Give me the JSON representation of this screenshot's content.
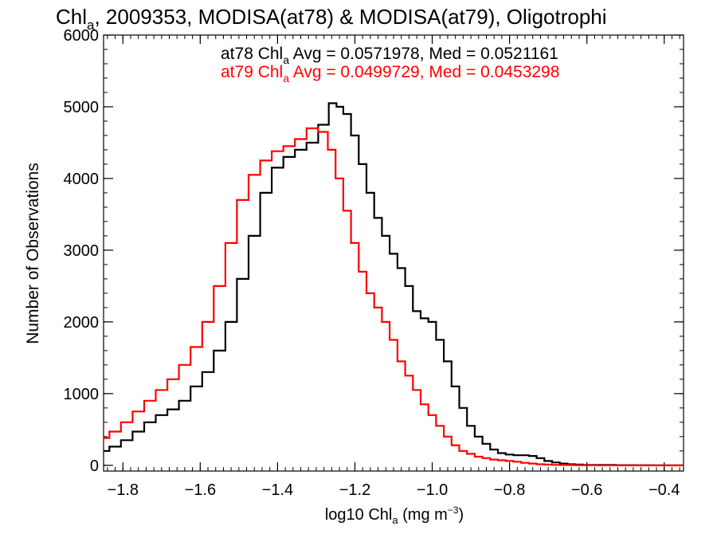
{
  "chart_data": {
    "type": "line",
    "title": {
      "base": "Chl",
      "sub": "a",
      "rest": ", 2009353, MODISA(at78) & MODISA(at79), Oligotrophi"
    },
    "xlabel": {
      "base": "log10 Chl",
      "sub": "a",
      "units": " (mg m",
      "sup": "−3",
      "close": ")"
    },
    "ylabel": "Number of Observations",
    "xlim": [
      -1.85,
      -0.35
    ],
    "ylim": [
      -80,
      6000
    ],
    "x_ticks": [
      -1.8,
      -1.6,
      -1.4,
      -1.2,
      -1.0,
      -0.8,
      -0.6,
      -0.4
    ],
    "x_tick_labels": [
      "−1.8",
      "−1.6",
      "−1.4",
      "−1.2",
      "−1.0",
      "−0.8",
      "−0.6",
      "−0.4"
    ],
    "y_ticks": [
      0,
      1000,
      2000,
      3000,
      4000,
      5000,
      6000
    ],
    "y_tick_labels": [
      "0",
      "1000",
      "2000",
      "3000",
      "4000",
      "5000",
      "6000"
    ],
    "grid": false,
    "legend_position": "top",
    "series": [
      {
        "color": "#000000",
        "legend": {
          "pre": "at78 Chl",
          "sub": "a",
          "post": " Avg = 0.0571978, Med = 0.0521161"
        },
        "x": [
          -1.85,
          -1.82,
          -1.79,
          -1.76,
          -1.73,
          -1.7,
          -1.67,
          -1.64,
          -1.61,
          -1.58,
          -1.55,
          -1.52,
          -1.49,
          -1.46,
          -1.43,
          -1.4,
          -1.37,
          -1.34,
          -1.31,
          -1.28,
          -1.255,
          -1.24,
          -1.22,
          -1.2,
          -1.18,
          -1.16,
          -1.14,
          -1.12,
          -1.1,
          -1.08,
          -1.06,
          -1.04,
          -1.02,
          -1.0,
          -0.98,
          -0.96,
          -0.94,
          -0.92,
          -0.9,
          -0.88,
          -0.86,
          -0.84,
          -0.82,
          -0.8,
          -0.78,
          -0.76,
          -0.74,
          -0.72,
          -0.7,
          -0.68,
          -0.66,
          -0.64,
          -0.62,
          -0.6,
          -0.55,
          -0.5,
          -0.45,
          -0.4,
          -0.35
        ],
        "y": [
          200,
          260,
          350,
          470,
          600,
          700,
          780,
          900,
          1100,
          1300,
          1600,
          2000,
          2600,
          3200,
          3800,
          4150,
          4300,
          4400,
          4500,
          4750,
          5050,
          5000,
          4900,
          4600,
          4200,
          3800,
          3450,
          3200,
          2950,
          2750,
          2500,
          2150,
          2050,
          2000,
          1750,
          1450,
          1100,
          800,
          550,
          400,
          300,
          220,
          170,
          150,
          140,
          140,
          130,
          100,
          60,
          40,
          25,
          15,
          10,
          6,
          4,
          2,
          1,
          0,
          0
        ]
      },
      {
        "color": "#ff0000",
        "legend": {
          "pre": "at79 Chl",
          "sub": "a",
          "post": " Avg = 0.0499729, Med = 0.0453298"
        },
        "x": [
          -1.85,
          -1.82,
          -1.79,
          -1.76,
          -1.73,
          -1.7,
          -1.67,
          -1.64,
          -1.61,
          -1.58,
          -1.55,
          -1.52,
          -1.49,
          -1.46,
          -1.43,
          -1.4,
          -1.37,
          -1.34,
          -1.31,
          -1.28,
          -1.26,
          -1.24,
          -1.22,
          -1.2,
          -1.18,
          -1.16,
          -1.14,
          -1.12,
          -1.1,
          -1.08,
          -1.06,
          -1.04,
          -1.02,
          -1.0,
          -0.98,
          -0.96,
          -0.94,
          -0.92,
          -0.9,
          -0.88,
          -0.86,
          -0.84,
          -0.82,
          -0.8,
          -0.78,
          -0.76,
          -0.74,
          -0.72,
          -0.7,
          -0.68,
          -0.66,
          -0.64,
          -0.62,
          -0.6,
          -0.55,
          -0.5,
          -0.45,
          -0.4,
          -0.35
        ],
        "y": [
          380,
          470,
          600,
          750,
          900,
          1050,
          1200,
          1400,
          1650,
          2000,
          2500,
          3100,
          3700,
          4050,
          4250,
          4380,
          4450,
          4550,
          4700,
          4650,
          4400,
          4000,
          3550,
          3100,
          2700,
          2400,
          2200,
          2000,
          1750,
          1450,
          1250,
          1050,
          850,
          700,
          550,
          400,
          280,
          200,
          160,
          120,
          100,
          80,
          70,
          60,
          50,
          35,
          25,
          15,
          10,
          6,
          4,
          3,
          2,
          1,
          0,
          0,
          0,
          0,
          0
        ]
      }
    ]
  }
}
